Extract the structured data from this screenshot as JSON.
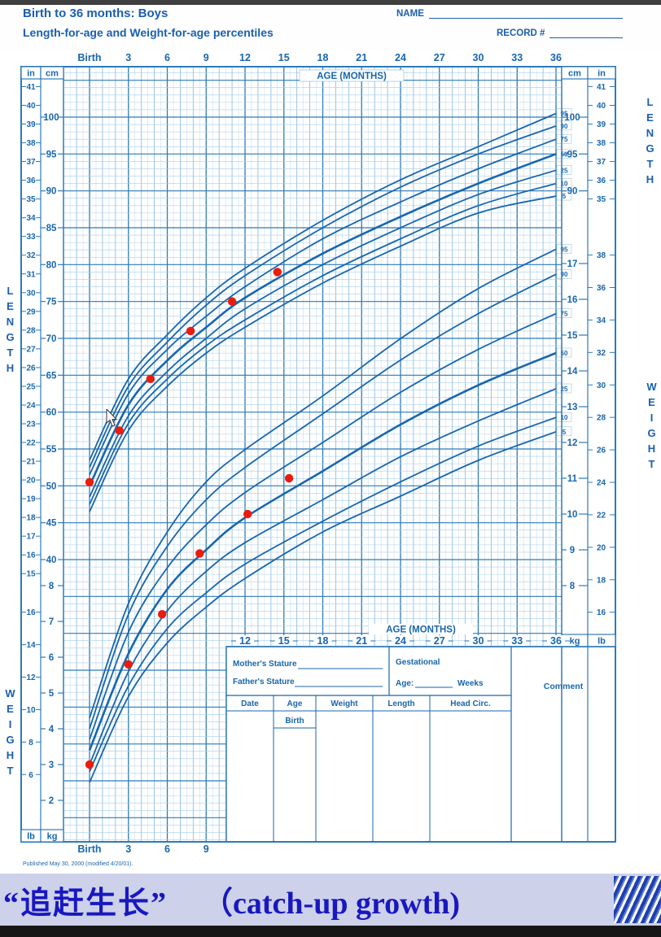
{
  "header": {
    "title_line1": "Birth to 36 months: Boys",
    "title_line2": "Length-for-age and Weight-for-age percentiles",
    "name_label": "NAME",
    "record_label": "RECORD #"
  },
  "table": {
    "mothers_stature": "Mother's Stature",
    "fathers_stature": "Father's Stature",
    "gestational": "Gestational",
    "age_label": "Age:",
    "weeks_label": "Weeks",
    "comment_label": "Comment",
    "columns": [
      "Date",
      "Age",
      "Weight",
      "Length",
      "Head Circ."
    ],
    "first_row_age": "Birth"
  },
  "footer": {
    "note": "Published May 30, 2000 (modified 4/20/01)."
  },
  "caption": {
    "chinese": "“追赶生长”",
    "english": "（catch-up growth)"
  },
  "colors": {
    "chart_blue": "#1866ad",
    "grid_heavy": "#2e7ab8",
    "grid_med": "#86b7dd",
    "grid_med2": "#a9cde9",
    "grid_fine": "#c5ddf1",
    "red": "#ea1c0d",
    "header_blue": "#1a5fae"
  },
  "chart_data": {
    "type": "line",
    "title": "Birth to 36 months: Boys — Length-for-age and Weight-for-age percentiles",
    "side_labels": {
      "length": "LENGTH",
      "weight": "WEIGHT"
    },
    "age_axis": {
      "label": "AGE (MONTHS)",
      "range_months": [
        0,
        36
      ],
      "top_ticks": [
        {
          "m": 0,
          "t": "Birth"
        },
        {
          "m": 3,
          "t": "3"
        },
        {
          "m": 6,
          "t": "6"
        },
        {
          "m": 9,
          "t": "9"
        },
        {
          "m": 12,
          "t": "12"
        },
        {
          "m": 15,
          "t": "15"
        },
        {
          "m": 18,
          "t": "18"
        },
        {
          "m": 21,
          "t": "21"
        },
        {
          "m": 24,
          "t": "24"
        },
        {
          "m": 27,
          "t": "27"
        },
        {
          "m": 30,
          "t": "30"
        },
        {
          "m": 33,
          "t": "33"
        },
        {
          "m": 36,
          "t": "36"
        }
      ],
      "mid_ticks": [
        {
          "m": 12,
          "t": "12"
        },
        {
          "m": 15,
          "t": "15"
        },
        {
          "m": 18,
          "t": "18"
        },
        {
          "m": 21,
          "t": "21"
        },
        {
          "m": 24,
          "t": "24"
        },
        {
          "m": 27,
          "t": "27"
        },
        {
          "m": 30,
          "t": "30"
        },
        {
          "m": 33,
          "t": "33"
        },
        {
          "m": 36,
          "t": "36"
        }
      ],
      "bottom_ticks": [
        {
          "m": 0,
          "t": "Birth"
        },
        {
          "m": 3,
          "t": "3"
        },
        {
          "m": 6,
          "t": "6"
        },
        {
          "m": 9,
          "t": "9"
        }
      ]
    },
    "length_axis": {
      "units": [
        "in",
        "cm"
      ],
      "in_ticks": [
        41,
        40,
        39,
        38,
        37,
        36,
        35,
        34,
        33,
        32,
        31,
        30,
        29,
        28,
        27,
        26,
        25,
        24,
        23,
        22,
        21,
        20,
        19,
        18,
        17,
        16,
        15
      ],
      "cm_ticks": [
        100,
        95,
        90,
        85,
        80,
        75,
        70,
        65,
        60,
        55,
        50,
        45,
        40
      ],
      "right_cm_ticks": [
        100,
        95,
        90
      ],
      "right_in_ticks": [
        41,
        40,
        39,
        38,
        37,
        36,
        35
      ]
    },
    "weight_axis": {
      "units": [
        "kg",
        "lb"
      ],
      "right_kg_ticks": [
        17,
        16,
        15,
        14,
        13,
        12,
        11,
        10,
        9,
        8
      ],
      "right_lb_ticks": [
        38,
        36,
        34,
        32,
        30,
        28,
        26,
        24,
        22,
        20,
        18,
        16
      ],
      "left_kg_ticks": [
        8,
        7,
        6,
        5,
        4,
        3,
        2
      ],
      "left_lb_ticks": [
        16,
        14,
        12,
        10,
        8,
        6
      ]
    },
    "percentiles": [
      "95",
      "90",
      "75",
      "50",
      "25",
      "10",
      "5"
    ],
    "length_curves": {
      "unit": "cm",
      "months": [
        0,
        3,
        6,
        9,
        12,
        18,
        24,
        30,
        36
      ],
      "series": {
        "95": [
          53.5,
          64.5,
          70.5,
          75.5,
          79.5,
          86.0,
          91.5,
          96.0,
          100.5
        ],
        "90": [
          52.5,
          63.5,
          69.5,
          74.5,
          78.5,
          85.0,
          90.5,
          95.0,
          98.8
        ],
        "75": [
          51.5,
          62.5,
          68.5,
          73.0,
          77.0,
          83.5,
          88.5,
          93.0,
          97.0
        ],
        "50": [
          50.0,
          61.0,
          67.0,
          71.5,
          75.5,
          81.5,
          86.5,
          91.0,
          95.0
        ],
        "25": [
          48.5,
          59.5,
          65.5,
          70.0,
          74.0,
          80.0,
          85.0,
          89.5,
          92.8
        ],
        "10": [
          47.5,
          58.5,
          64.5,
          69.0,
          72.5,
          78.5,
          83.5,
          88.0,
          91.0
        ],
        "5": [
          46.5,
          57.5,
          63.5,
          68.0,
          71.5,
          77.5,
          82.5,
          87.0,
          89.3
        ]
      }
    },
    "weight_curves": {
      "unit": "kg",
      "months": [
        0,
        3,
        6,
        9,
        12,
        18,
        24,
        30,
        36
      ],
      "series": {
        "95": [
          4.3,
          7.5,
          9.5,
          10.9,
          11.8,
          13.3,
          14.9,
          16.3,
          17.4
        ],
        "90": [
          4.0,
          7.2,
          9.1,
          10.4,
          11.3,
          12.8,
          14.3,
          15.6,
          16.7
        ],
        "75": [
          3.7,
          6.7,
          8.5,
          9.7,
          10.6,
          12.0,
          13.4,
          14.6,
          15.6
        ],
        "50": [
          3.4,
          6.1,
          7.9,
          9.0,
          9.9,
          11.2,
          12.5,
          13.6,
          14.5
        ],
        "25": [
          3.0,
          5.6,
          7.3,
          8.4,
          9.2,
          10.4,
          11.6,
          12.6,
          13.5
        ],
        "10": [
          2.8,
          5.2,
          6.8,
          7.8,
          8.6,
          9.8,
          10.9,
          11.9,
          12.7
        ],
        "5": [
          2.5,
          4.9,
          6.4,
          7.4,
          8.2,
          9.5,
          10.5,
          11.5,
          12.3
        ]
      }
    },
    "patient_series": {
      "marker_color": "#ea1c0d",
      "length": {
        "unit": "cm",
        "points": [
          {
            "m": 0,
            "cm": 50.5
          },
          {
            "m": 2.3,
            "cm": 57.5
          },
          {
            "m": 4.7,
            "cm": 64.5
          },
          {
            "m": 7.8,
            "cm": 71.0
          },
          {
            "m": 11.0,
            "cm": 75.0
          },
          {
            "m": 14.5,
            "cm": 79.0
          }
        ]
      },
      "weight": {
        "unit": "kg",
        "points": [
          {
            "m": 0,
            "kg": 3.0
          },
          {
            "m": 3.0,
            "kg": 5.8
          },
          {
            "m": 5.6,
            "kg": 7.2
          },
          {
            "m": 8.5,
            "kg": 8.9
          },
          {
            "m": 12.2,
            "kg": 10.0
          },
          {
            "m": 15.4,
            "kg": 11.0
          }
        ]
      }
    }
  }
}
